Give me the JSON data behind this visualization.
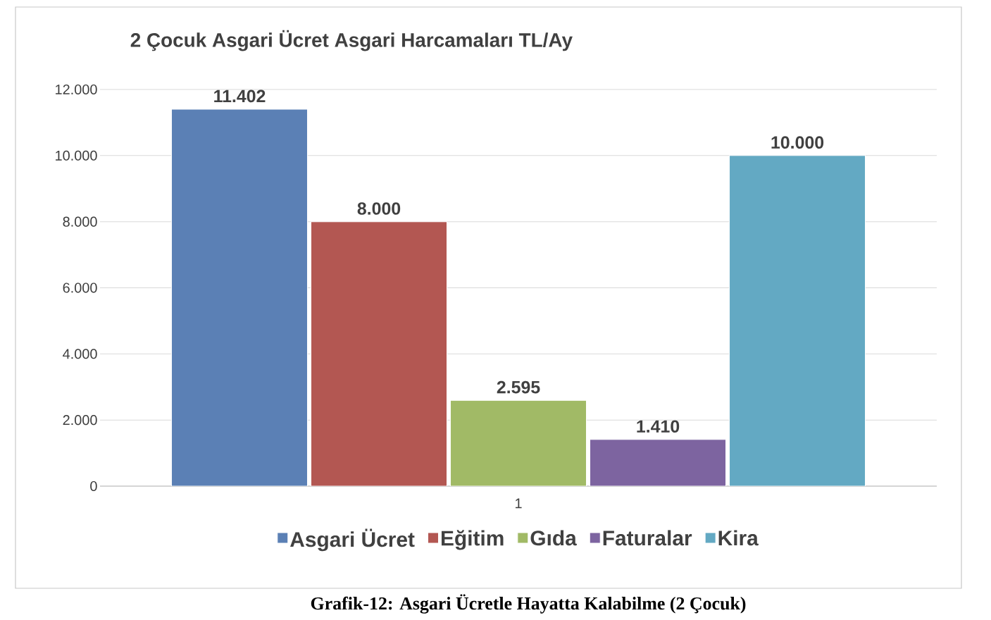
{
  "chart_data": {
    "type": "bar",
    "title": "2 Çocuk Asgari Ücret Asgari Harcamaları TL/Ay",
    "categories": [
      "1"
    ],
    "series": [
      {
        "name": "Asgari Ücret",
        "color": "#5b80b5",
        "values": [
          11402
        ],
        "value_labels": [
          "11.402"
        ]
      },
      {
        "name": "Eğitim",
        "color": "#b35752",
        "values": [
          8000
        ],
        "value_labels": [
          "8.000"
        ]
      },
      {
        "name": "Gıda",
        "color": "#a1ba66",
        "values": [
          2595
        ],
        "value_labels": [
          "2.595"
        ]
      },
      {
        "name": "Faturalar",
        "color": "#7d64a0",
        "values": [
          1410
        ],
        "value_labels": [
          "1.410"
        ]
      },
      {
        "name": "Kira",
        "color": "#63a9c3",
        "values": [
          10000
        ],
        "value_labels": [
          "10.000"
        ]
      }
    ],
    "ylim": [
      0,
      12000
    ],
    "yticks": [
      0,
      {
        "value": 2000,
        "label": "2.000"
      },
      {
        "value": 4000,
        "label": "4.000"
      },
      {
        "value": 6000,
        "label": "6.000"
      },
      {
        "value": 8000,
        "label": "8.000"
      },
      {
        "value": 10000,
        "label": "10.000"
      },
      {
        "value": 12000,
        "label": "12.000"
      }
    ],
    "grid": "y",
    "legend": "bottom",
    "annotations": [
      "Grafik-12: Asgari Ücretle Hayatta Kalabilme (2 Çocuk)"
    ]
  }
}
